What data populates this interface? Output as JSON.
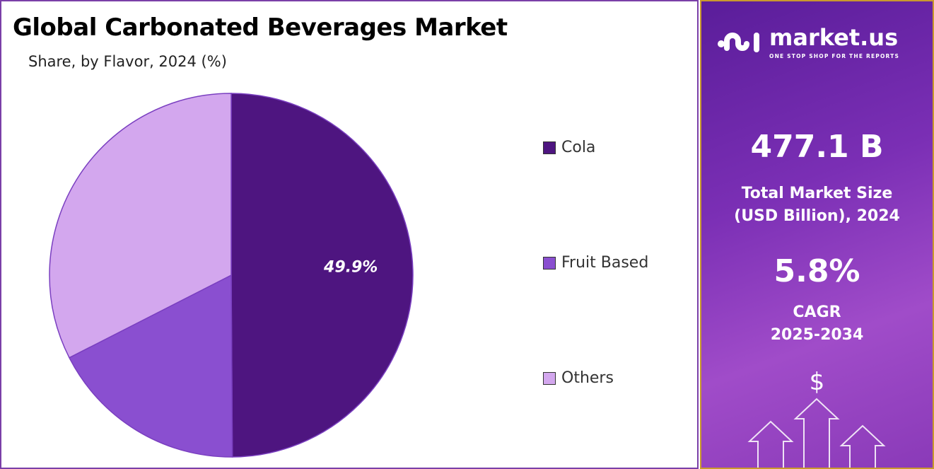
{
  "title": "Global Carbonated Beverages Market",
  "subtitle": "Share, by Flavor, 2024 (%)",
  "chart_data": {
    "type": "pie",
    "title": "Global Carbonated Beverages Market",
    "subtitle": "Share, by Flavor, 2024 (%)",
    "categories": [
      "Cola",
      "Fruit Based",
      "Others"
    ],
    "values": [
      49.9,
      17.6,
      32.5
    ],
    "colors": [
      "#4e1580",
      "#8a4fd0",
      "#d3a7ee"
    ],
    "data_labels": [
      "49.9%",
      "",
      ""
    ],
    "legend_position": "right",
    "start_angle": "12 o'clock, clockwise"
  },
  "sidebar": {
    "logo": {
      "name": "market.us",
      "tagline": "ONE STOP SHOP FOR THE REPORTS"
    },
    "market_size": "477.1 B",
    "market_size_label_1": "Total Market Size",
    "market_size_label_2": "(USD Billion), 2024",
    "cagr": "5.8%",
    "cagr_label_1": "CAGR",
    "cagr_label_2": "2025-2034",
    "dollar": "$"
  }
}
